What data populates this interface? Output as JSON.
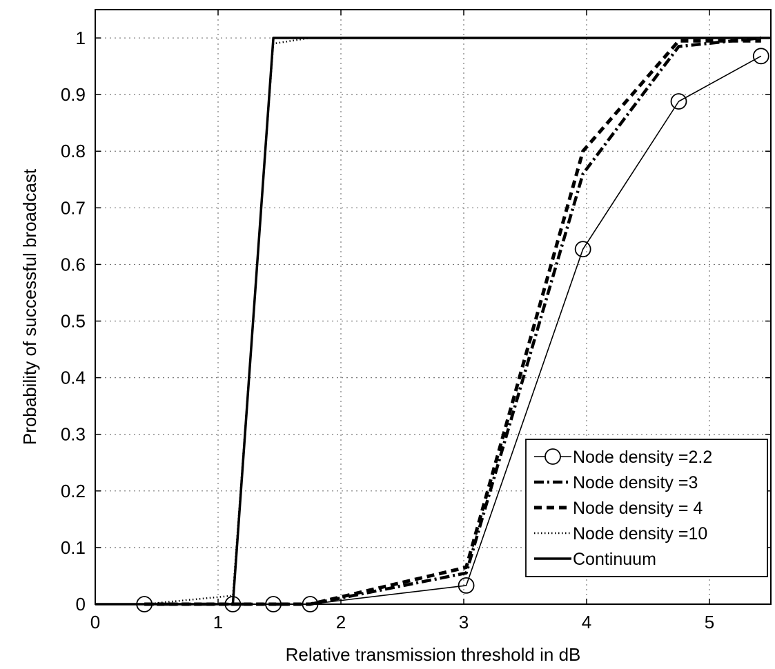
{
  "chart_data": {
    "type": "line",
    "title": "",
    "xlabel": "Relative transmission threshold in dB",
    "ylabel": "Probability of successful broadcast",
    "xlim": [
      0,
      5.5
    ],
    "ylim": [
      0,
      1.05
    ],
    "grid": true,
    "legend_position": "bottom-right",
    "x_ticks": [
      0,
      1,
      2,
      3,
      4,
      5
    ],
    "y_ticks": [
      0,
      0.1,
      0.2,
      0.3,
      0.4,
      0.5,
      0.6,
      0.7,
      0.8,
      0.9,
      1
    ],
    "x_tick_labels": [
      "0",
      "1",
      "2",
      "3",
      "4",
      "5"
    ],
    "y_tick_labels": [
      "0",
      "0.1",
      "0.2",
      "0.3",
      "0.4",
      "0.5",
      "0.6",
      "0.7",
      "0.8",
      "0.9",
      "1"
    ],
    "series": [
      {
        "name": "Node density =2.2",
        "style": "solid-circle",
        "color": "#000000",
        "x": [
          0.4,
          1.12,
          1.45,
          1.75,
          3.02,
          3.97,
          4.75,
          5.42
        ],
        "y": [
          0.0,
          0.0,
          0.0,
          0.0,
          0.033,
          0.627,
          0.888,
          0.968
        ]
      },
      {
        "name": "Node density =3",
        "style": "dashdot",
        "color": "#000000",
        "x": [
          0.4,
          1.12,
          1.45,
          1.75,
          3.02,
          3.97,
          4.75,
          5.42
        ],
        "y": [
          0.0,
          0.0,
          0.0,
          0.0,
          0.055,
          0.76,
          0.985,
          1.0
        ]
      },
      {
        "name": "Node density = 4",
        "style": "dashed",
        "color": "#000000",
        "x": [
          0.4,
          1.12,
          1.45,
          1.75,
          3.02,
          3.97,
          4.75,
          5.42
        ],
        "y": [
          0.0,
          0.0,
          0.0,
          0.0,
          0.065,
          0.8,
          0.995,
          0.995
        ]
      },
      {
        "name": "Node density =10",
        "style": "dotted",
        "color": "#000000",
        "x": [
          0.4,
          1.12,
          1.45,
          1.75,
          3.02,
          3.97,
          4.75,
          5.42
        ],
        "y": [
          0.0,
          0.015,
          0.99,
          1.0,
          1.0,
          1.0,
          1.0,
          1.0
        ]
      },
      {
        "name": "Continuum",
        "style": "thick-solid",
        "color": "#000000",
        "x": [
          0.0,
          1.12,
          1.45,
          5.5
        ],
        "y": [
          0.0,
          0.0,
          1.0,
          1.0
        ]
      }
    ]
  }
}
